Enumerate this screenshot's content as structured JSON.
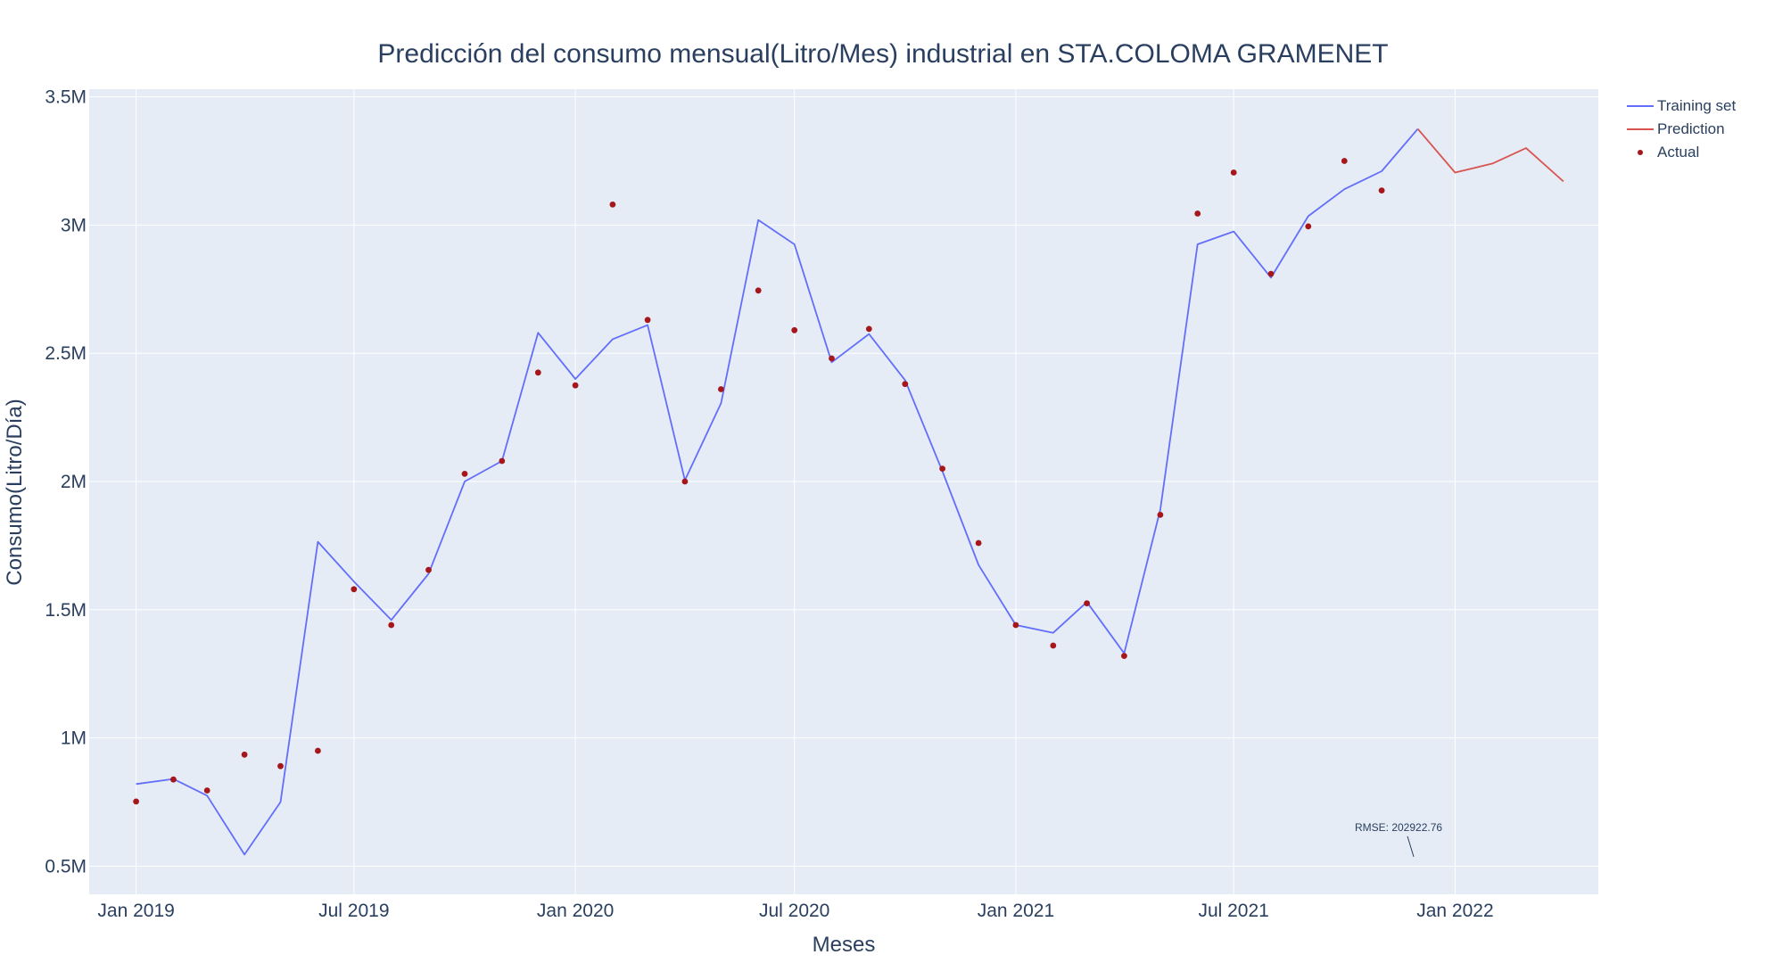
{
  "chart_data": {
    "type": "line",
    "title": "Predicción del consumo mensual(Litro/Mes) industrial en STA.COLOMA GRAMENET",
    "xlabel": "Meses",
    "ylabel": "Consumo(Litro/Día)",
    "x_range": [
      "2018-11-23",
      "2022-04-30"
    ],
    "ylim": [
      390000,
      3530000
    ],
    "x_ticks": [
      {
        "date": "2019-01-01",
        "label": "Jan 2019"
      },
      {
        "date": "2019-07-01",
        "label": "Jul 2019"
      },
      {
        "date": "2020-01-01",
        "label": "Jan 2020"
      },
      {
        "date": "2020-07-01",
        "label": "Jul 2020"
      },
      {
        "date": "2021-01-01",
        "label": "Jan 2021"
      },
      {
        "date": "2021-07-01",
        "label": "Jul 2021"
      },
      {
        "date": "2022-01-01",
        "label": "Jan 2022"
      }
    ],
    "y_ticks": [
      {
        "value": 500000,
        "label": "0.5M"
      },
      {
        "value": 1000000,
        "label": "1M"
      },
      {
        "value": 1500000,
        "label": "1.5M"
      },
      {
        "value": 2000000,
        "label": "2M"
      },
      {
        "value": 2500000,
        "label": "2.5M"
      },
      {
        "value": 3000000,
        "label": "3M"
      },
      {
        "value": 3500000,
        "label": "3.5M"
      }
    ],
    "grid": true,
    "legend_position": "top-right",
    "series": [
      {
        "name": "Training set",
        "mode": "lines",
        "color": "#636efa",
        "x": [
          "2019-01-01",
          "2019-02-01",
          "2019-03-01",
          "2019-04-01",
          "2019-05-01",
          "2019-06-01",
          "2019-07-01",
          "2019-08-01",
          "2019-09-01",
          "2019-10-01",
          "2019-11-01",
          "2019-12-01",
          "2020-01-01",
          "2020-02-01",
          "2020-03-01",
          "2020-04-01",
          "2020-05-01",
          "2020-06-01",
          "2020-07-01",
          "2020-08-01",
          "2020-09-01",
          "2020-10-01",
          "2020-11-01",
          "2020-12-01",
          "2021-01-01",
          "2021-02-01",
          "2021-03-01",
          "2021-04-01",
          "2021-05-01",
          "2021-06-01",
          "2021-07-01",
          "2021-08-01",
          "2021-09-01",
          "2021-10-01",
          "2021-11-01",
          "2021-12-01"
        ],
        "y": [
          820000,
          840000,
          775000,
          545000,
          750000,
          1765000,
          1610000,
          1460000,
          1640000,
          2000000,
          2080000,
          2580000,
          2400000,
          2555000,
          2610000,
          2005000,
          2305000,
          3020000,
          2925000,
          2465000,
          2575000,
          2395000,
          2040000,
          1675000,
          1440000,
          1410000,
          1530000,
          1330000,
          1890000,
          2925000,
          2975000,
          2795000,
          3035000,
          3140000,
          3210000,
          3375000
        ]
      },
      {
        "name": "Prediction",
        "mode": "lines",
        "color": "#d9534f",
        "x": [
          "2021-12-01",
          "2022-01-01",
          "2022-02-01",
          "2022-03-01",
          "2022-04-01"
        ],
        "y": [
          3375000,
          3205000,
          3240000,
          3300000,
          3170000
        ]
      },
      {
        "name": "Actual",
        "mode": "markers",
        "color": "#a6171c",
        "x": [
          "2019-01-01",
          "2019-02-01",
          "2019-03-01",
          "2019-04-01",
          "2019-05-01",
          "2019-06-01",
          "2019-07-01",
          "2019-08-01",
          "2019-09-01",
          "2019-10-01",
          "2019-11-01",
          "2019-12-01",
          "2020-01-01",
          "2020-02-01",
          "2020-03-01",
          "2020-04-01",
          "2020-05-01",
          "2020-06-01",
          "2020-07-01",
          "2020-08-01",
          "2020-09-01",
          "2020-10-01",
          "2020-11-01",
          "2020-12-01",
          "2021-01-01",
          "2021-02-01",
          "2021-03-01",
          "2021-04-01",
          "2021-05-01",
          "2021-06-01",
          "2021-07-01",
          "2021-08-01",
          "2021-09-01",
          "2021-10-01",
          "2021-11-01"
        ],
        "y": [
          752000,
          838000,
          795000,
          935000,
          890000,
          950000,
          1580000,
          1440000,
          1655000,
          2030000,
          2080000,
          2425000,
          2375000,
          3080000,
          2630000,
          2000000,
          2360000,
          2745000,
          2590000,
          2480000,
          2595000,
          2380000,
          2050000,
          1760000,
          1440000,
          1360000,
          1525000,
          1320000,
          1870000,
          3045000,
          3205000,
          2810000,
          2995000,
          3250000,
          3135000
        ]
      }
    ],
    "annotations": [
      {
        "text": "RMSE: 202922.76",
        "x": "2021-11-15",
        "y": 700000
      }
    ]
  }
}
